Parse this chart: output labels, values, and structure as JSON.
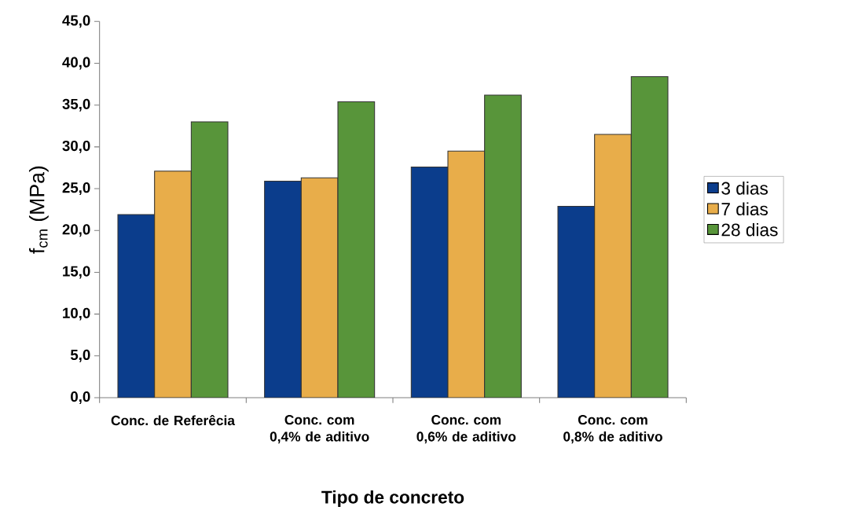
{
  "chart_data": {
    "type": "bar",
    "xlabel": "Tipo de concreto",
    "ylabel": "f$_{cm}$ (MPa)",
    "categories": [
      "Conc. de Referêcia",
      "Conc. com 0,4% de aditivo",
      "Conc. com 0,6% de aditivo",
      "Conc. com 0,8% de aditivo"
    ],
    "series": [
      {
        "name": "3 dias",
        "color": "#0b3d8c",
        "values": [
          21.9,
          25.9,
          27.6,
          22.9
        ]
      },
      {
        "name": "7 dias",
        "color": "#e8ad4a",
        "values": [
          27.1,
          26.3,
          29.5,
          31.5
        ]
      },
      {
        "name": "28 dias",
        "color": "#58953a",
        "values": [
          33.0,
          35.4,
          36.2,
          38.4
        ]
      }
    ],
    "ylim": [
      0,
      45
    ],
    "yticks": [
      {
        "value": 0,
        "label": "0,0"
      },
      {
        "value": 5,
        "label": "5,0"
      },
      {
        "value": 10,
        "label": "10,0"
      },
      {
        "value": 15,
        "label": "15,0"
      },
      {
        "value": 20,
        "label": "20,0"
      },
      {
        "value": 25,
        "label": "25,0"
      },
      {
        "value": 30,
        "label": "30,0"
      },
      {
        "value": 35,
        "label": "35,0"
      },
      {
        "value": 40,
        "label": "40,0"
      },
      {
        "value": 45,
        "label": "45,0"
      }
    ],
    "grid": false,
    "legend": "right"
  }
}
